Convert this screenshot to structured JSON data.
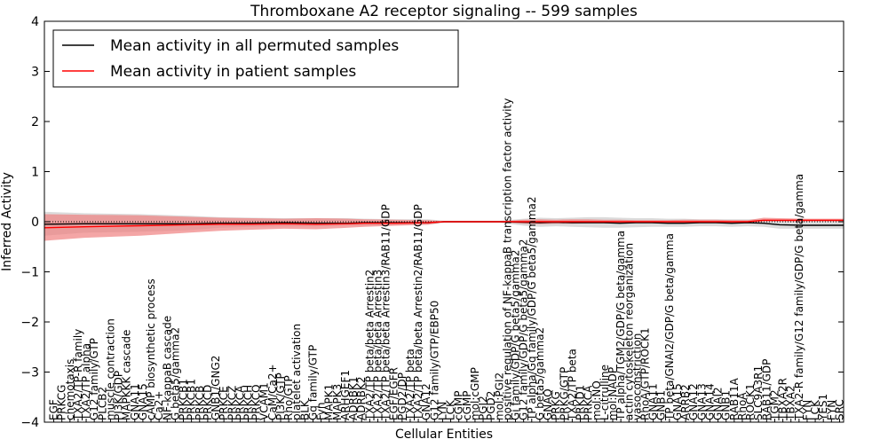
{
  "chart_data": {
    "type": "line",
    "title": "Thromboxane A2 receptor signaling -- 599 samples",
    "xlabel": "Cellular Entities",
    "ylabel": "Inferred Activity",
    "ylim": [
      -4,
      4
    ],
    "yticks": [
      -4,
      -3,
      -2,
      -1,
      0,
      1,
      2,
      3,
      4
    ],
    "grid": false,
    "legend_position": "top-left",
    "colors": {
      "permuted": "#000000",
      "patient": "#ff0000",
      "patient_band": "#f08080",
      "permuted_band": "#c8c8c8",
      "zero_line": "#000000"
    },
    "categories": [
      "EGF",
      "PRKCG",
      "chemotaxis",
      "TXA2/TP-R family",
      "TXA2/TP alpha",
      "G12 family/GTP",
      "PLCB2",
      "muscle contraction",
      "PI3K/GDP",
      "MAPKKK cascade",
      "GNA11",
      "GNA15",
      "cAMP biosynthetic process",
      "Ca2+",
      "NF-kappaB cascade",
      "G beta5/gamma2",
      "PRKCB1",
      "PRKCB1",
      "PRKCB",
      "PRKCD",
      "GNB1/GNG2",
      "PRKCE",
      "PRKCZ",
      "PRKCA",
      "PRKCH",
      "PRKCQ",
      "VCAM1",
      "CaM/Ca2+",
      "PI3K/GTP",
      "Rho/GTP",
      "platelet activation",
      "BLK",
      "Gq family/GTP",
      "Fyn",
      "MAPK1",
      "MAPK3",
      "ARHGEF1",
      "ADRBK1",
      "ADRBK2",
      "TXA2/TP beta/beta Arrestin2",
      "TXA2/TP beta/beta Arrestin3",
      "TXA2/TP beta/beta Arrestin3/RAB11/GDP",
      "EGF/EGFR",
      "PGD2/DP",
      "TXA2/TP beta",
      "TXA2/TP beta/beta Arrestin2/RAB11/GDP",
      "GNA12",
      "G12 family/GTP/EBP50",
      "LYN",
      "LCK",
      "cGMP",
      "cGMP",
      "mol:cGMP",
      "PGI2",
      "PGD2",
      "mol:PGI2",
      "positive regulation of NF-kappaB transcription factor activity",
      "Gi family/GDP/G beta5/gamma2",
      "G12 family/GDP/G beta5/gamma2",
      "TP alpha/Gq family/GDP/G beta5/gamma2",
      "G beta5/gamma2",
      "GNAQ",
      "PRKG",
      "PRKG/GTP",
      "TXA2/TP beta",
      "PRKD1",
      "PRKCA",
      "mol:NO",
      "L-citrulline",
      "mol:NADP",
      "TP alpha/TGM2/GDP/G beta/gamma",
      "actin cytoskeleton reorganization",
      "vasoconstriction",
      "RhoA/GTP/ROCK1",
      "GNA11",
      "GNB1",
      "TP beta/GNAI2/GDP/G beta/gamma",
      "GNA15",
      "ARRB2",
      "GNA12",
      "GNA13",
      "GNA14",
      "GNAI2",
      "GNB1",
      "RAB11A",
      "RhoA",
      "ROCK1",
      "SLC9A3R1",
      "RAB11/GDP",
      "TGM2",
      "TBXA2R",
      "TBXA2",
      "TXA2-R family/G12 family/GDP/G beta/gamma",
      "FYN",
      "LCK",
      "YES1",
      "FYN",
      "SRC"
    ],
    "x_axis_range": [
      0,
      100
    ],
    "series": [
      {
        "name": "Mean activity in all permuted samples",
        "x": [
          0,
          5,
          12,
          18,
          22,
          26,
          30,
          34,
          38,
          40,
          44,
          48,
          50,
          53,
          55,
          57,
          60,
          62,
          64,
          66,
          68,
          70,
          72,
          74,
          76,
          78,
          80,
          82,
          84,
          86,
          88,
          90,
          92,
          95,
          100
        ],
        "values": [
          -0.05,
          -0.04,
          -0.04,
          -0.04,
          -0.03,
          -0.03,
          -0.02,
          -0.03,
          -0.03,
          -0.02,
          -0.02,
          -0.02,
          0.0,
          0.0,
          0.0,
          0.0,
          -0.01,
          -0.02,
          -0.01,
          -0.02,
          -0.02,
          -0.02,
          -0.03,
          -0.02,
          -0.02,
          -0.03,
          -0.03,
          -0.02,
          -0.02,
          -0.03,
          -0.02,
          -0.03,
          -0.06,
          -0.07,
          -0.07
        ],
        "band_low": [
          -0.28,
          -0.22,
          -0.2,
          -0.17,
          -0.12,
          -0.1,
          -0.09,
          -0.09,
          -0.08,
          -0.08,
          -0.06,
          -0.06,
          -0.02,
          -0.02,
          -0.02,
          -0.02,
          -0.08,
          -0.1,
          -0.09,
          -0.1,
          -0.11,
          -0.12,
          -0.12,
          -0.11,
          -0.1,
          -0.1,
          -0.1,
          -0.09,
          -0.09,
          -0.1,
          -0.09,
          -0.1,
          -0.14,
          -0.14,
          -0.14
        ],
        "band_high": [
          0.2,
          0.17,
          0.15,
          0.12,
          0.09,
          0.08,
          0.07,
          0.07,
          0.07,
          0.06,
          0.05,
          0.05,
          0.02,
          0.02,
          0.02,
          0.02,
          0.06,
          0.08,
          0.07,
          0.08,
          0.09,
          0.09,
          0.08,
          0.07,
          0.07,
          0.06,
          0.06,
          0.05,
          0.05,
          0.05,
          0.05,
          0.05,
          0.03,
          0.03,
          0.03
        ]
      },
      {
        "name": "Mean activity in patient samples",
        "x": [
          0,
          5,
          12,
          18,
          22,
          26,
          30,
          34,
          38,
          40,
          44,
          48,
          50,
          53,
          55,
          57,
          60,
          62,
          64,
          66,
          68,
          70,
          72,
          74,
          76,
          78,
          80,
          82,
          84,
          86,
          88,
          90,
          92,
          95,
          100
        ],
        "values": [
          -0.12,
          -0.1,
          -0.08,
          -0.06,
          -0.05,
          -0.05,
          -0.04,
          -0.05,
          -0.04,
          -0.03,
          -0.03,
          -0.02,
          0.0,
          0.0,
          0.0,
          0.0,
          0.0,
          0.0,
          0.0,
          0.0,
          0.0,
          0.0,
          0.0,
          0.0,
          0.0,
          0.0,
          0.0,
          0.0,
          0.0,
          0.0,
          0.0,
          0.03,
          0.03,
          0.03,
          0.03
        ],
        "band_low": [
          -0.38,
          -0.32,
          -0.28,
          -0.22,
          -0.18,
          -0.16,
          -0.14,
          -0.15,
          -0.12,
          -0.1,
          -0.08,
          -0.06,
          -0.01,
          -0.01,
          -0.01,
          -0.01,
          -0.04,
          -0.05,
          -0.04,
          -0.04,
          -0.03,
          -0.03,
          -0.03,
          -0.02,
          -0.02,
          -0.02,
          -0.02,
          -0.02,
          -0.02,
          -0.02,
          -0.02,
          0.0,
          0.0,
          0.0,
          0.0
        ],
        "band_high": [
          0.15,
          0.14,
          0.13,
          0.1,
          0.08,
          0.07,
          0.06,
          0.07,
          0.06,
          0.05,
          0.04,
          0.03,
          0.01,
          0.01,
          0.01,
          0.01,
          0.04,
          0.05,
          0.04,
          0.05,
          0.05,
          0.04,
          0.04,
          0.03,
          0.03,
          0.03,
          0.04,
          0.04,
          0.04,
          0.03,
          0.03,
          0.08,
          0.07,
          0.06,
          0.06
        ]
      }
    ]
  }
}
